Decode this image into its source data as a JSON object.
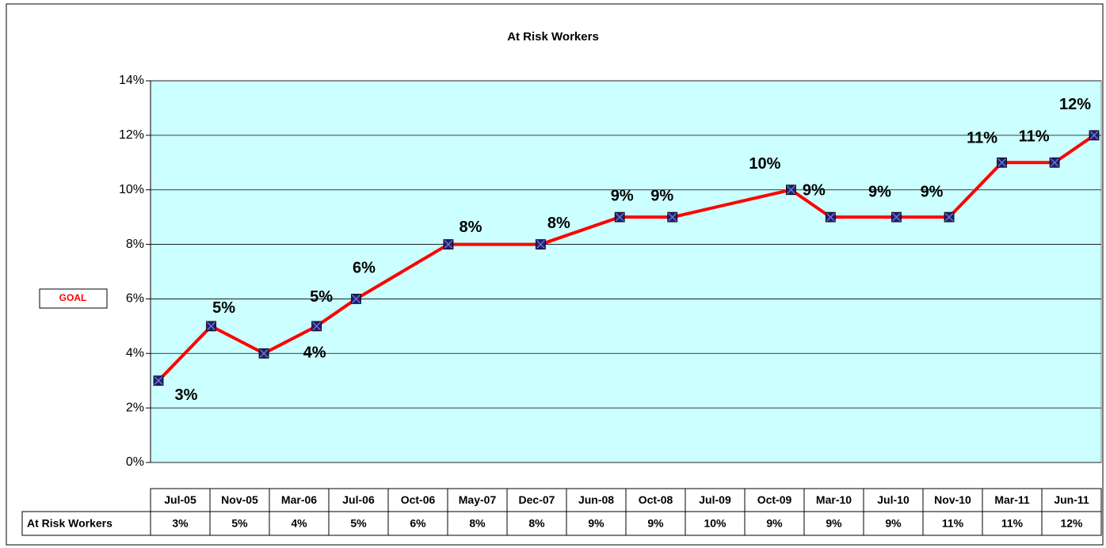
{
  "chart_data": {
    "type": "line",
    "title": "At Risk Workers",
    "x": [
      "Jul-05",
      "Nov-05",
      "Mar-06",
      "Jul-06",
      "Oct-06",
      "May-07",
      "Dec-07",
      "Jun-08",
      "Oct-08",
      "Jul-09",
      "Oct-09",
      "Mar-10",
      "Jul-10",
      "Nov-10",
      "Mar-11",
      "Jun-11"
    ],
    "series": [
      {
        "name": "At Risk Workers",
        "color": "#ff0000",
        "marker_color": "#1f1f7a",
        "values": [
          3,
          5,
          4,
          5,
          6,
          8,
          8,
          9,
          9,
          10,
          9,
          9,
          9,
          11,
          11,
          12
        ],
        "value_labels": [
          "3%",
          "5%",
          "4%",
          "5%",
          "6%",
          "8%",
          "8%",
          "9%",
          "9%",
          "10%",
          "9%",
          "9%",
          "9%",
          "11%",
          "11%",
          "12%"
        ]
      }
    ],
    "ylim": [
      0,
      14
    ],
    "yticks": [
      {
        "value": 0,
        "label": "0%"
      },
      {
        "value": 2,
        "label": "2%"
      },
      {
        "value": 4,
        "label": "4%"
      },
      {
        "value": 6,
        "label": "6%"
      },
      {
        "value": 8,
        "label": "8%"
      },
      {
        "value": 10,
        "label": "10%"
      },
      {
        "value": 12,
        "label": "12%"
      },
      {
        "value": 14,
        "label": "14%"
      }
    ],
    "grid": true,
    "plot_background": "#ccffff",
    "goal_label": "GOAL"
  }
}
